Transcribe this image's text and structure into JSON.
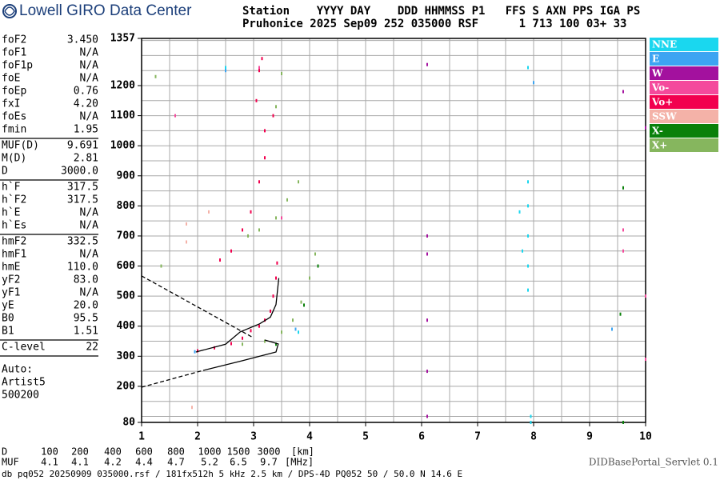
{
  "header": {
    "logo": "Lowell GIRO Data Center",
    "line1": "Station    YYYY DAY    DDD HHMMSS P1   FFS S AXN PPS IGA PS",
    "line2": "Pruhonice 2025 Sep09 252 035000 RSF      1 713 100 03+ 33"
  },
  "params": [
    [
      [
        "foF2",
        "3.450"
      ],
      [
        "foF1",
        "N/A"
      ],
      [
        "foF1p",
        "N/A"
      ],
      [
        "foE",
        "N/A"
      ],
      [
        "foEp",
        "0.76"
      ],
      [
        "fxI",
        "4.20"
      ],
      [
        "foEs",
        "N/A"
      ],
      [
        "fmin",
        "1.95"
      ]
    ],
    [
      [
        "MUF(D)",
        "9.691"
      ],
      [
        "M(D)",
        "2.81"
      ],
      [
        "D",
        "3000.0"
      ]
    ],
    [
      [
        "h`F",
        "317.5"
      ],
      [
        "h`F2",
        "317.5"
      ],
      [
        "h`E",
        "N/A"
      ],
      [
        "h`Es",
        "N/A"
      ]
    ],
    [
      [
        "hmF2",
        "332.5"
      ],
      [
        "hmF1",
        "N/A"
      ],
      [
        "hmE",
        "110.0"
      ],
      [
        "yF2",
        "83.0"
      ],
      [
        "yF1",
        "N/A"
      ],
      [
        "yE",
        "20.0"
      ],
      [
        "B0",
        "95.5"
      ],
      [
        "B1",
        "1.51"
      ]
    ],
    [
      [
        "C-level",
        "22"
      ]
    ]
  ],
  "auto": [
    "Auto:",
    "Artist5",
    "500200"
  ],
  "muf_table": {
    "d_label": "D",
    "d_values": [
      "100",
      "200",
      "400",
      "600",
      "800",
      "1000",
      "1500",
      "3000"
    ],
    "d_unit": "[km]",
    "muf_label": "MUF",
    "muf_values": [
      "4.1",
      "4.1",
      "4.2",
      "4.4",
      "4.7",
      "5.2",
      "6.5",
      "9.7"
    ],
    "muf_unit": "[MHz]"
  },
  "footer": {
    "left": "db pq052 20250909 035000.rsf / 181fx512h 5 kHz 2.5 km / DPS-4D PQ052 50 / 50.0 N 14.6 E",
    "right": "DIDBasePortal_Servlet 0.1"
  },
  "chart_data": {
    "type": "scatter",
    "xlim": [
      1,
      10
    ],
    "xticks": [
      1,
      2,
      3,
      4,
      5,
      6,
      7,
      8,
      9,
      10
    ],
    "xminor": [
      1.5,
      2.5,
      3.5,
      4.5,
      5.5,
      6.5,
      7.5,
      8.5,
      9.5
    ],
    "ylim": [
      80,
      1357
    ],
    "yticks": [
      80,
      200,
      300,
      400,
      500,
      600,
      700,
      800,
      900,
      1000,
      1100,
      1200,
      1357
    ],
    "yminor": [
      100,
      150,
      250,
      350,
      450,
      550,
      650,
      750,
      850,
      950,
      1050,
      1150,
      1250,
      1300,
      1350
    ],
    "grid": true,
    "series": [
      {
        "name": "NNE",
        "color": "#1ad7ef",
        "x": [
          7.9,
          7.9,
          7.9,
          7.9,
          7.9,
          7.95,
          7.95,
          7.75,
          7.8,
          2.5,
          3.8,
          7.9
        ],
        "values": [
          520,
          600,
          700,
          800,
          880,
          100,
          80,
          780,
          650,
          1260,
          380,
          1260
        ]
      },
      {
        "name": "E",
        "color": "#3ca4f2",
        "x": [
          2.5,
          1.95,
          3.75,
          8.0,
          9.4
        ],
        "values": [
          1250,
          315,
          390,
          1210,
          390
        ]
      },
      {
        "name": "W",
        "color": "#a3119e",
        "x": [
          6.1,
          6.1,
          6.1,
          6.1,
          6.1,
          10.0,
          9.6,
          6.1
        ],
        "values": [
          700,
          640,
          420,
          250,
          100,
          1060,
          1180,
          1270
        ]
      },
      {
        "name": "Vo-",
        "color": "#f44a9c",
        "x": [
          9.6,
          9.6,
          10.0,
          10.0,
          3.1,
          1.6,
          3.5
        ],
        "values": [
          650,
          720,
          500,
          290,
          1260,
          1100,
          760
        ]
      },
      {
        "name": "Vo+",
        "color": "#f2004e",
        "x": [
          2.0,
          2.3,
          2.6,
          2.8,
          2.95,
          3.1,
          3.2,
          3.3,
          3.35,
          3.4,
          3.42,
          2.4,
          2.6,
          2.8,
          2.95,
          3.1,
          3.2,
          3.2,
          3.35,
          3.05,
          3.1,
          3.15
        ],
        "values": [
          318,
          328,
          342,
          360,
          385,
          400,
          420,
          450,
          500,
          560,
          610,
          620,
          650,
          720,
          780,
          880,
          960,
          1050,
          1100,
          1150,
          1250,
          1290
        ]
      },
      {
        "name": "SSW",
        "color": "#f4b2a8",
        "x": [
          1.8,
          1.8,
          2.2,
          1.9
        ],
        "values": [
          740,
          680,
          780,
          130
        ]
      },
      {
        "name": "X-",
        "color": "#0a800a",
        "x": [
          3.4,
          3.9,
          4.15,
          9.6,
          9.6,
          9.55
        ],
        "values": [
          340,
          470,
          600,
          860,
          80,
          440
        ]
      },
      {
        "name": "X+",
        "color": "#86b65e",
        "x": [
          2.8,
          3.2,
          3.5,
          3.7,
          3.85,
          4.0,
          4.1,
          2.9,
          3.1,
          3.4,
          3.6,
          3.8,
          3.4,
          3.5,
          1.35,
          1.25
        ],
        "values": [
          340,
          350,
          380,
          420,
          480,
          560,
          640,
          700,
          720,
          760,
          820,
          880,
          1130,
          1240,
          600,
          1230
        ]
      }
    ],
    "lines": [
      {
        "dashed": true,
        "x": [
          1.0,
          2.97
        ],
        "values": [
          567,
          364
        ]
      },
      {
        "dashed": true,
        "x": [
          1.0,
          2.1
        ],
        "values": [
          197,
          253
        ]
      },
      {
        "dashed": false,
        "x": [
          1.97,
          2.5,
          2.76,
          3.11,
          3.3,
          3.4,
          3.45
        ],
        "values": [
          314,
          340,
          381,
          408,
          430,
          472,
          560
        ]
      },
      {
        "dashed": false,
        "x": [
          2.1,
          2.8,
          3.4,
          3.44,
          3.2
        ],
        "values": [
          253,
          285,
          314,
          341,
          354
        ]
      }
    ]
  }
}
